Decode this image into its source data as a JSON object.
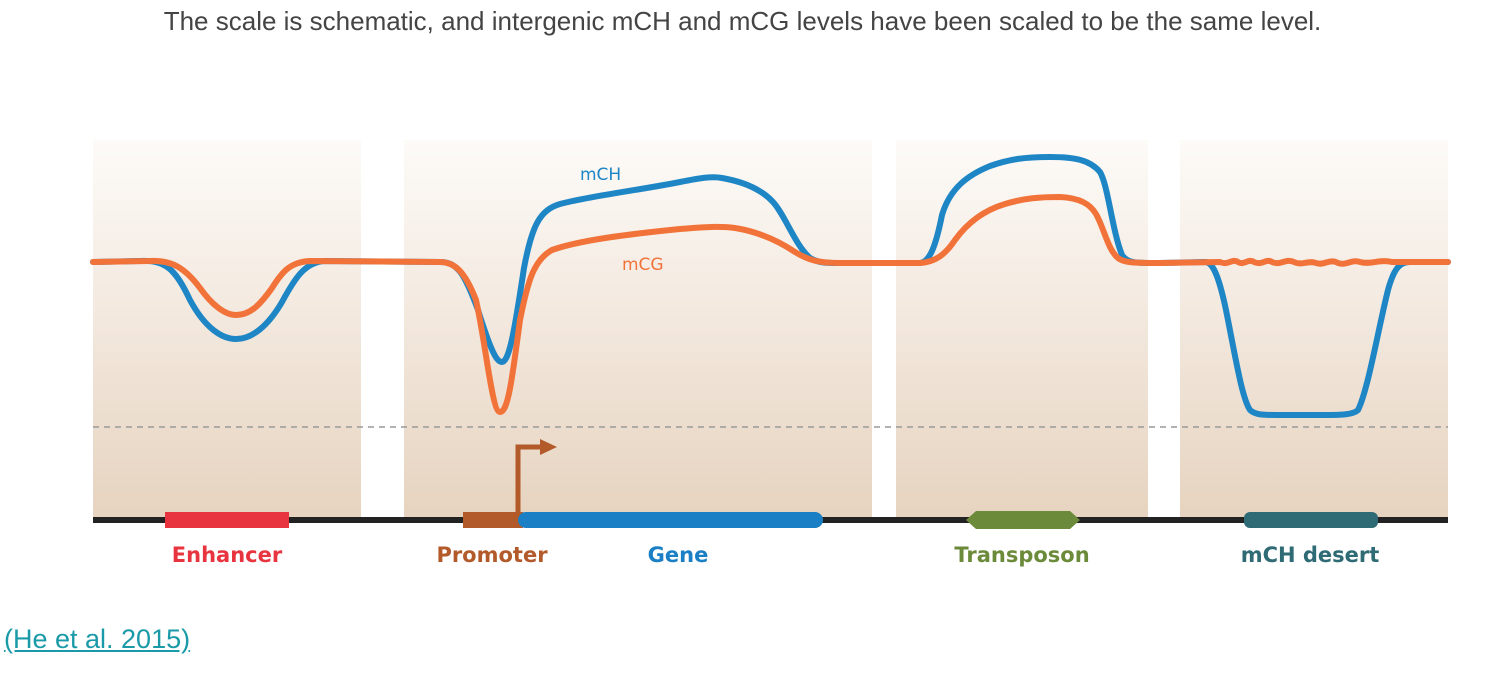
{
  "caption": "The scale is schematic, and intergenic mCH and mCG levels have been scaled to be the same level.",
  "citation": "(He et al. 2015)",
  "curve_labels": {
    "mch": "mCH",
    "mcg": "mCG"
  },
  "regions": {
    "enhancer": "Enhancer",
    "promoter": "Promoter",
    "gene": "Gene",
    "transposon": "Transposon",
    "mch_desert": "mCH desert"
  },
  "colors": {
    "mch": "#1f86c6",
    "mcg": "#f2733a",
    "enhancer": "#e8343f",
    "promoter": "#b35a2a",
    "gene": "#1a7fc4",
    "transposon": "#6b8a3a",
    "mch_desert": "#2f6b75",
    "genome_line": "#222222"
  }
}
